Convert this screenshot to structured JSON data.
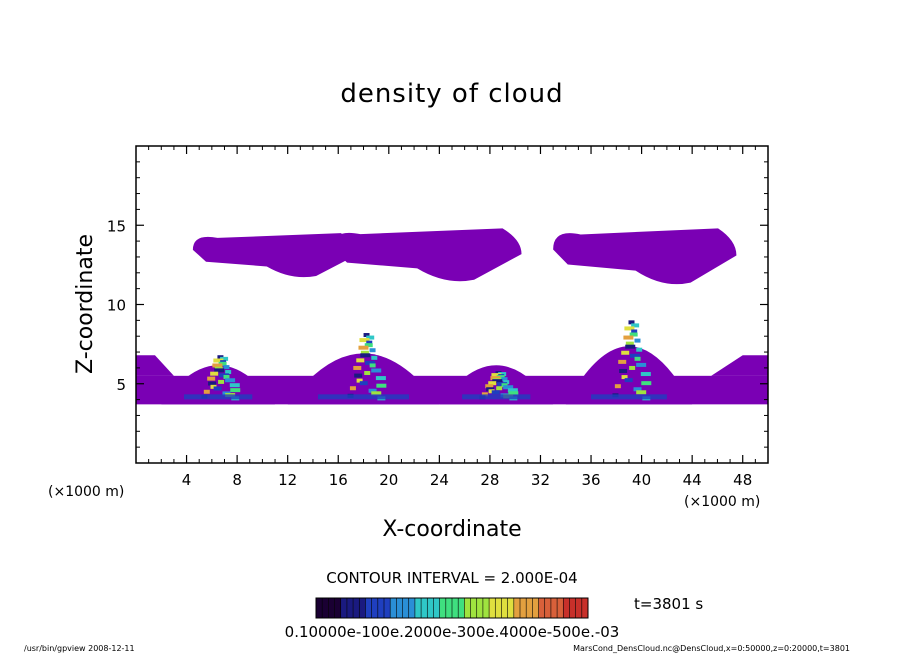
{
  "chart_data": {
    "type": "heatmap",
    "title": "density of cloud",
    "xlabel": "X-coordinate",
    "ylabel": "Z-coordinate",
    "x_unit": "(×1000 m)",
    "y_unit": "(×1000 m)",
    "xlim": [
      0,
      50
    ],
    "ylim": [
      0,
      20
    ],
    "x_ticks": [
      4,
      8,
      12,
      16,
      20,
      24,
      28,
      32,
      36,
      40,
      44,
      48
    ],
    "y_ticks": [
      5,
      10,
      15
    ],
    "contour_interval": "CONTOUR INTERVAL = 2.000E-04",
    "time_label": "t=3801 s",
    "colorbar_labels": "0.10000e-100e.2000e-300e.4000e-500e.-03",
    "colorbar_colors": [
      "#1a0033",
      "#1a1a80",
      "#1f3fbf",
      "#2a8fd6",
      "#2fc7c7",
      "#3fdf7f",
      "#9fe33f",
      "#dfdf3f",
      "#e3a03f",
      "#d8603a",
      "#c8302a"
    ],
    "fill_color": "#7a00b4",
    "cloud_regions": [
      {
        "name": "upper-cloud-1",
        "x": [
          4.5,
          17.5
        ],
        "z": [
          11.5,
          14.5
        ]
      },
      {
        "name": "upper-cloud-2",
        "x": [
          15.5,
          30.5
        ],
        "z": [
          11.2,
          14.8
        ]
      },
      {
        "name": "upper-cloud-3",
        "x": [
          33,
          47.5
        ],
        "z": [
          11.0,
          14.8
        ]
      },
      {
        "name": "lower-layer",
        "x": [
          0,
          50
        ],
        "z": [
          3.7,
          5.5
        ]
      },
      {
        "name": "peak-1",
        "x": [
          2,
          11
        ],
        "z": [
          3.7,
          8.0
        ],
        "core_top": 6.8
      },
      {
        "name": "peak-2",
        "x": [
          12,
          24
        ],
        "z": [
          3.7,
          9.5
        ],
        "core_top": 8.2
      },
      {
        "name": "peak-3",
        "x": [
          24,
          33
        ],
        "z": [
          3.7,
          8.0
        ],
        "core_top": 5.8
      },
      {
        "name": "peak-4",
        "x": [
          34,
          44
        ],
        "z": [
          3.7,
          10.4
        ],
        "core_top": 9.0
      }
    ]
  },
  "footer": {
    "left": "/usr/bin/gpview   2008-12-11",
    "right": "MarsCond_DensCloud.nc@DensCloud,x=0:50000,z=0:20000,t=3801"
  }
}
